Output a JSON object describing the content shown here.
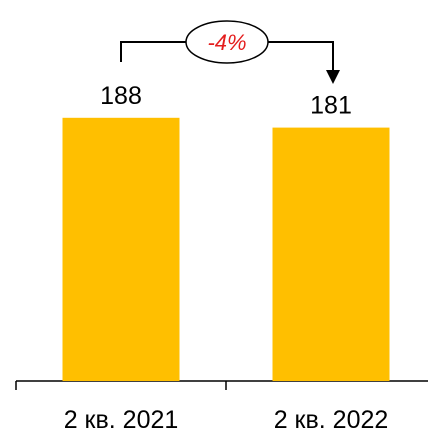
{
  "chart_data": {
    "type": "bar",
    "categories": [
      "2 кв. 2021",
      "2 кв. 2022"
    ],
    "values": [
      188,
      181
    ],
    "data_labels": [
      "188",
      "181"
    ],
    "ylim": [
      0,
      200
    ],
    "grid": false,
    "title": "",
    "xlabel": "",
    "ylabel": "",
    "change_annotation": {
      "text": "-4%",
      "color": "#e41e1e"
    },
    "colors": {
      "bar": "#ffbf00",
      "axis": "#000000"
    }
  }
}
